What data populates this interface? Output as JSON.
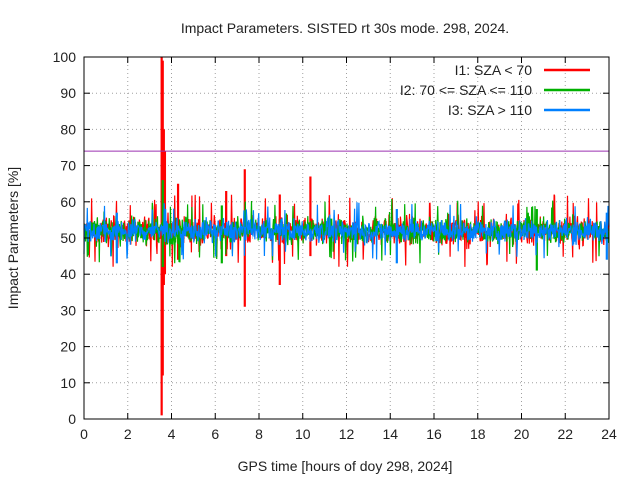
{
  "chart_data": {
    "type": "line",
    "title": "Impact Parameters. SISTED rt 30s mode. 298, 2024.",
    "xlabel": "GPS time [hours of doy 298, 2024]",
    "ylabel": "Impact Parameters [%]",
    "xlim": [
      0,
      24
    ],
    "ylim": [
      0,
      100
    ],
    "xticks": [
      0,
      2,
      4,
      6,
      8,
      10,
      12,
      14,
      16,
      18,
      20,
      22,
      24
    ],
    "yticks": [
      0,
      10,
      20,
      30,
      40,
      50,
      60,
      70,
      80,
      90,
      100
    ],
    "grid": true,
    "legend_position": "top-right",
    "threshold": {
      "value": 74,
      "color": "#9b30b0"
    },
    "series": [
      {
        "name": "I1: SZA < 70",
        "color": "#ff0000",
        "baseline": 52,
        "spread": 5,
        "events": [
          {
            "x": 3.55,
            "min": 1,
            "max": 100
          },
          {
            "x": 3.6,
            "min": 12,
            "max": 99
          },
          {
            "x": 3.65,
            "min": 37,
            "max": 80
          },
          {
            "x": 3.7,
            "min": 40,
            "max": 74
          },
          {
            "x": 7.35,
            "min": 31,
            "max": 69
          },
          {
            "x": 8.95,
            "min": 37,
            "max": 62
          },
          {
            "x": 10.35,
            "min": 45,
            "max": 67
          },
          {
            "x": 6.5,
            "min": 45,
            "max": 63
          },
          {
            "x": 4.3,
            "min": 44,
            "max": 65
          }
        ]
      },
      {
        "name": "I2: 70 <= SZA <= 110",
        "color": "#00b000",
        "baseline": 52,
        "spread": 4.5,
        "events": [
          {
            "x": 3.6,
            "min": 42,
            "max": 66
          },
          {
            "x": 20.7,
            "min": 41,
            "max": 58
          },
          {
            "x": 6.3,
            "min": 43,
            "max": 59
          }
        ]
      },
      {
        "name": "I3: SZA > 110",
        "color": "#0080ff",
        "baseline": 52,
        "spread": 4,
        "events": [
          {
            "x": 1.5,
            "min": 43,
            "max": 57
          },
          {
            "x": 14.3,
            "min": 43,
            "max": 58
          },
          {
            "x": 23.9,
            "min": 44,
            "max": 57
          }
        ]
      }
    ]
  }
}
